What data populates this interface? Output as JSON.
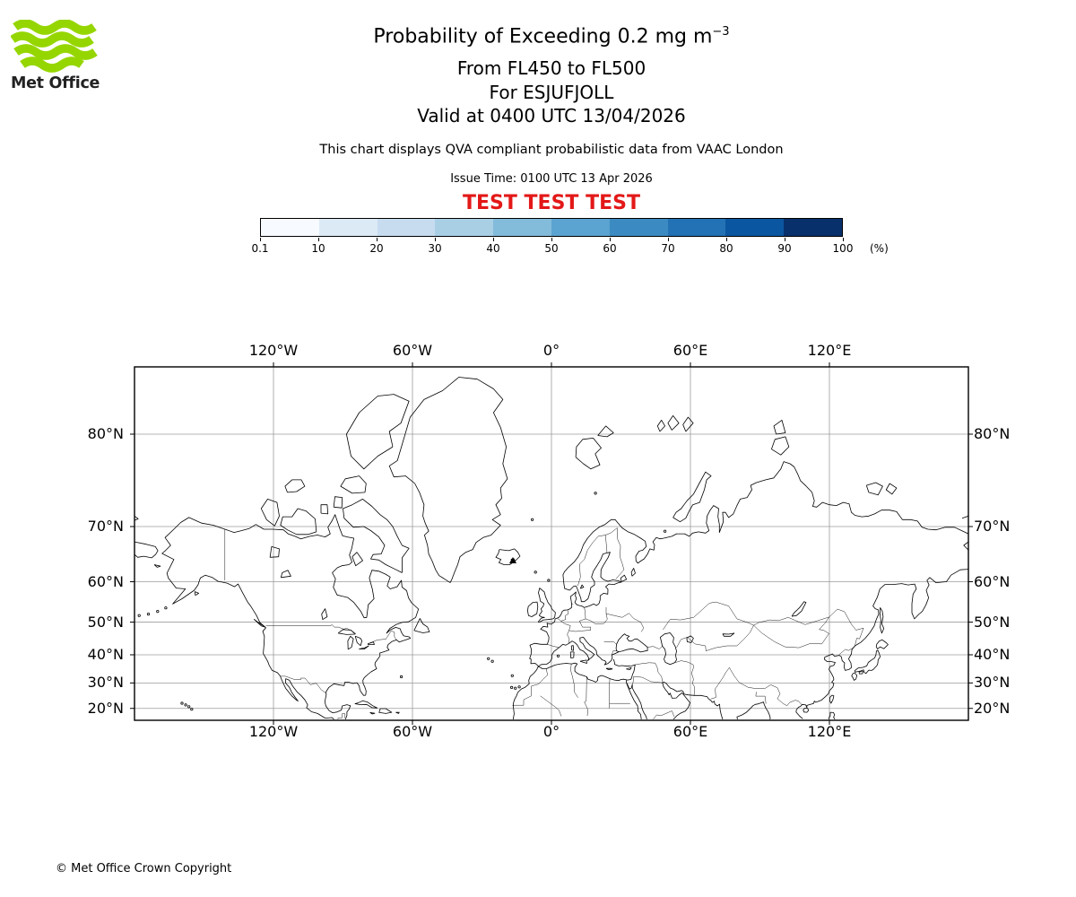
{
  "logo": {
    "brand": "Met Office"
  },
  "header": {
    "title_main": "Probability of Exceeding 0.2 mg m",
    "title_sup": "−3",
    "line1": "From FL450 to FL500",
    "line2": "For ESJUFJOLL",
    "line3": "Valid at 0400 UTC 13/04/2026",
    "note": "This chart displays QVA compliant probabilistic data from VAAC London",
    "issue": "Issue Time: 0100 UTC 13 Apr 2026",
    "test_banner": "TEST TEST TEST"
  },
  "colorbar": {
    "ticks": [
      "0.1",
      "10",
      "20",
      "30",
      "40",
      "50",
      "60",
      "70",
      "80",
      "90",
      "100"
    ],
    "unit": "(%)",
    "colors": [
      "#f7fbff",
      "#dceaf6",
      "#c7dcef",
      "#a9cfe5",
      "#83bbdb",
      "#5ba3d0",
      "#3b8bc2",
      "#2272b5",
      "#0b56a0",
      "#08306b"
    ]
  },
  "map": {
    "x_ticks": [
      "120°W",
      "60°W",
      "0°",
      "60°E",
      "120°E"
    ],
    "y_ticks": [
      "80°N",
      "70°N",
      "60°N",
      "50°N",
      "40°N",
      "30°N",
      "20°N"
    ]
  },
  "footer": {
    "copyright": "© Met Office Crown Copyright"
  },
  "accent": {
    "test_red": "#e31818",
    "logo_green": "#95d600",
    "grid_gray": "#9b9b9b"
  }
}
